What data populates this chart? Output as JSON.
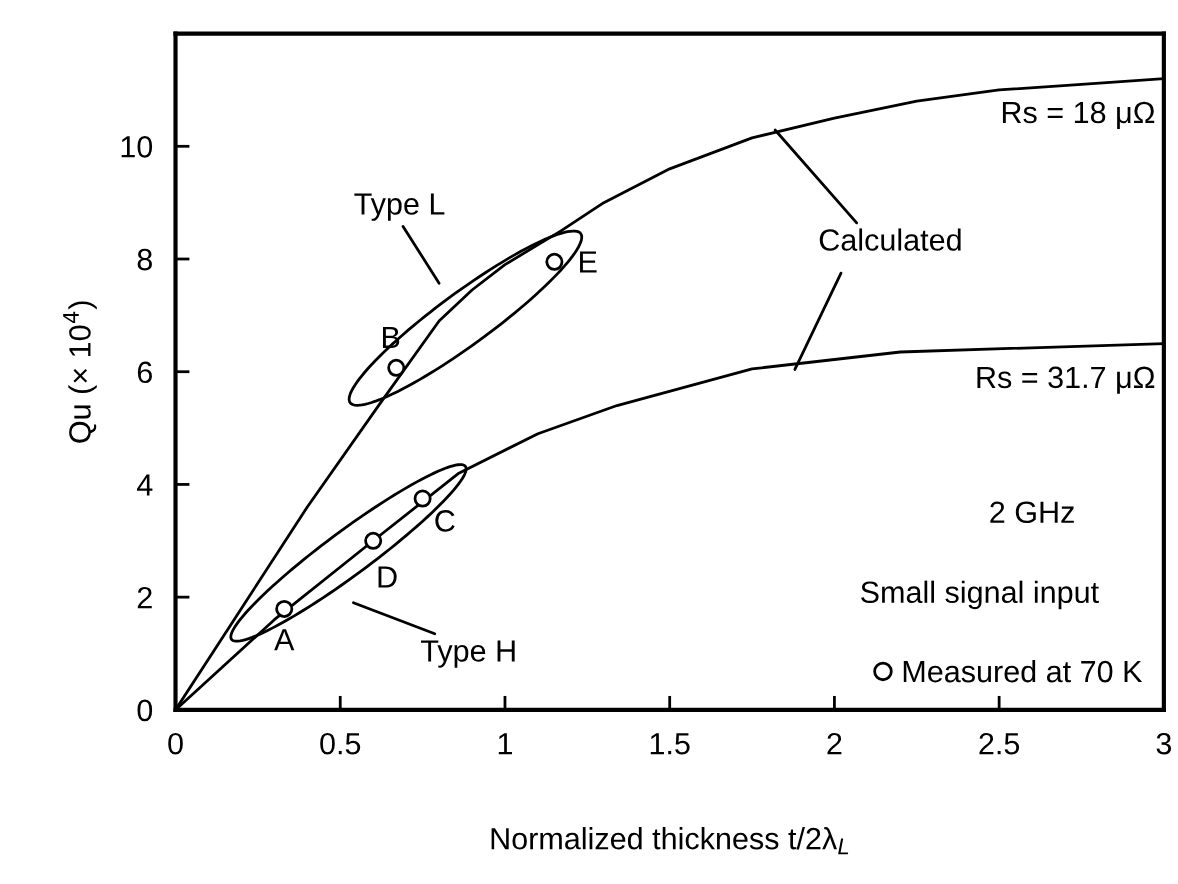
{
  "chart_data": {
    "type": "line",
    "xlabel": "Normalized thickness t/2λ$_{L}$",
    "ylabel": "Qu (× 10$^{4}$)",
    "xlim": [
      0,
      3
    ],
    "ylim": [
      0,
      12
    ],
    "xticks": [
      0,
      0.5,
      1,
      1.5,
      2,
      2.5,
      3
    ],
    "yticks": [
      0,
      2,
      4,
      6,
      8,
      10
    ],
    "grid": false,
    "legend": "bottom right",
    "marker": "none",
    "line_style": "solid",
    "series": [
      {
        "name": "Rs = 18 μΩ",
        "color": "#000000",
        "x": [
          0,
          0.2,
          0.4,
          0.62,
          0.8,
          0.9,
          1.0,
          1.17,
          1.3,
          1.5,
          1.75,
          2,
          2.25,
          2.5,
          2.75,
          3
        ],
        "values": [
          0,
          1.8,
          3.6,
          5.43,
          6.9,
          7.45,
          7.9,
          8.5,
          9.0,
          9.6,
          10.15,
          10.5,
          10.8,
          11.0,
          11.1,
          11.2
        ]
      },
      {
        "name": "Rs = 31.7 μΩ",
        "color": "#000000",
        "x": [
          0,
          0.3,
          0.6,
          0.86,
          1.1,
          1.34,
          1.75,
          2.2,
          3
        ],
        "values": [
          0,
          1.6,
          3.0,
          4.2,
          4.9,
          5.4,
          6.05,
          6.35,
          6.5
        ]
      },
      {
        "name": "Measured at 70 K",
        "type": "scatter",
        "marker": "circle",
        "color": "#000000",
        "x": [
          0.33,
          0.67,
          0.75,
          0.6,
          1.15
        ],
        "values": [
          1.79,
          6.07,
          3.75,
          3.0,
          7.95
        ]
      }
    ],
    "annotations": [
      {
        "text": "A",
        "x": 0.33,
        "y": 1.79
      },
      {
        "text": "B",
        "x": 0.67,
        "y": 6.07
      },
      {
        "text": "C",
        "x": 0.75,
        "y": 3.75
      },
      {
        "text": "D",
        "x": 0.6,
        "y": 3.0
      },
      {
        "text": "E",
        "x": 1.15,
        "y": 7.95
      },
      "Type L",
      "Type H",
      {
        "text": "Calculated",
        "x": 1.82,
        "y": 10.29
      },
      "2 GHz",
      "Small signal input"
    ]
  }
}
